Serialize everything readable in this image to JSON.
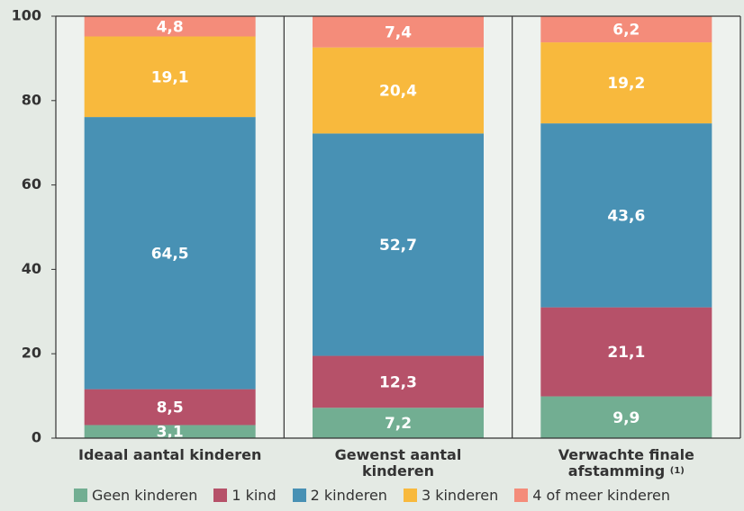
{
  "chart_data": {
    "type": "stacked_bar",
    "categories": [
      "Ideaal aantal kinderen",
      "Gewenst aantal kinderen",
      "Verwachte finale afstamming"
    ],
    "category_footnotes": [
      null,
      null,
      "(1)"
    ],
    "series": [
      {
        "name": "Geen kinderen",
        "color": "#72ae92",
        "values": [
          3.1,
          7.2,
          9.9
        ],
        "value_labels": [
          "3,1",
          "7,2",
          "9,9"
        ]
      },
      {
        "name": "1 kind",
        "color": "#b65169",
        "values": [
          8.5,
          12.3,
          21.1
        ],
        "value_labels": [
          "8,5",
          "12,3",
          "21,1"
        ]
      },
      {
        "name": "2 kinderen",
        "color": "#4891b4",
        "values": [
          64.5,
          52.7,
          43.6
        ],
        "value_labels": [
          "64,5",
          "52,7",
          "43,6"
        ]
      },
      {
        "name": "3 kinderen",
        "color": "#f8b93d",
        "values": [
          19.1,
          20.4,
          19.2
        ],
        "value_labels": [
          "19,1",
          "20,4",
          "19,2"
        ]
      },
      {
        "name": "4 of meer kinderen",
        "color": "#f48c7a",
        "values": [
          4.8,
          7.4,
          6.2
        ],
        "value_labels": [
          "4,8",
          "7,4",
          "6,2"
        ]
      }
    ],
    "ylim": [
      0,
      100
    ],
    "yticks": [
      0,
      20,
      40,
      60,
      80,
      100
    ],
    "legend": "bottom"
  }
}
